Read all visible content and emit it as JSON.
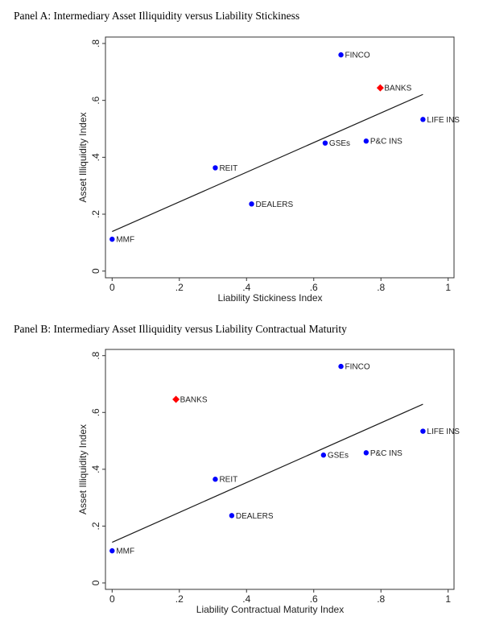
{
  "chart_data": [
    {
      "type": "scatter",
      "title": "Panel A: Intermediary Asset Illiquidity versus Liability Stickiness",
      "xlabel": "Liability Stickiness Index",
      "ylabel": "Asset Illiquidity Index",
      "xlim": [
        0,
        1
      ],
      "ylim": [
        0,
        0.8
      ],
      "xticks": [
        0,
        0.2,
        0.4,
        0.6,
        0.8,
        1
      ],
      "xtick_labels": [
        "0",
        ".2",
        ".4",
        ".6",
        ".8",
        "1"
      ],
      "yticks": [
        0,
        0.2,
        0.4,
        0.6,
        0.8
      ],
      "ytick_labels": [
        "0",
        ".2",
        ".4",
        ".6",
        ".8"
      ],
      "grid": false,
      "points": [
        {
          "label": "MMF",
          "x": 0.0,
          "y": 0.112,
          "highlight": false
        },
        {
          "label": "REIT",
          "x": 0.307,
          "y": 0.363,
          "highlight": false
        },
        {
          "label": "DEALERS",
          "x": 0.415,
          "y": 0.236,
          "highlight": false
        },
        {
          "label": "GSEs",
          "x": 0.634,
          "y": 0.45,
          "highlight": false
        },
        {
          "label": "FINCO",
          "x": 0.681,
          "y": 0.76,
          "highlight": false
        },
        {
          "label": "P&C INS",
          "x": 0.756,
          "y": 0.457,
          "highlight": false
        },
        {
          "label": "BANKS",
          "x": 0.798,
          "y": 0.644,
          "highlight": true
        },
        {
          "label": "LIFE INS",
          "x": 0.925,
          "y": 0.533,
          "highlight": false
        }
      ],
      "fit_line": {
        "x": [
          0.0,
          0.925
        ],
        "y": [
          0.139,
          0.621
        ]
      }
    },
    {
      "type": "scatter",
      "title": "Panel B: Intermediary Asset Illiquidity versus Liability Contractual Maturity",
      "xlabel": "Liability Contractual Maturity Index",
      "ylabel": "Asset Illiquidity Index",
      "xlim": [
        0,
        1
      ],
      "ylim": [
        0,
        0.8
      ],
      "xticks": [
        0,
        0.2,
        0.4,
        0.6,
        0.8,
        1
      ],
      "xtick_labels": [
        "0",
        ".2",
        ".4",
        ".6",
        ".8",
        "1"
      ],
      "yticks": [
        0,
        0.2,
        0.4,
        0.6,
        0.8
      ],
      "ytick_labels": [
        "0",
        ".2",
        ".4",
        ".6",
        ".8"
      ],
      "grid": false,
      "points": [
        {
          "label": "MMF",
          "x": 0.0,
          "y": 0.113,
          "highlight": false
        },
        {
          "label": "BANKS",
          "x": 0.19,
          "y": 0.646,
          "highlight": true
        },
        {
          "label": "REIT",
          "x": 0.307,
          "y": 0.365,
          "highlight": false
        },
        {
          "label": "DEALERS",
          "x": 0.356,
          "y": 0.237,
          "highlight": false
        },
        {
          "label": "GSEs",
          "x": 0.629,
          "y": 0.45,
          "highlight": false
        },
        {
          "label": "FINCO",
          "x": 0.681,
          "y": 0.762,
          "highlight": false
        },
        {
          "label": "P&C INS",
          "x": 0.756,
          "y": 0.458,
          "highlight": false
        },
        {
          "label": "LIFE INS",
          "x": 0.925,
          "y": 0.534,
          "highlight": false
        }
      ],
      "fit_line": {
        "x": [
          0.0,
          0.925
        ],
        "y": [
          0.143,
          0.629
        ]
      }
    }
  ],
  "colors": {
    "point": "#0000ff",
    "highlight": "#ff0000",
    "line": "#1a1a1a"
  }
}
